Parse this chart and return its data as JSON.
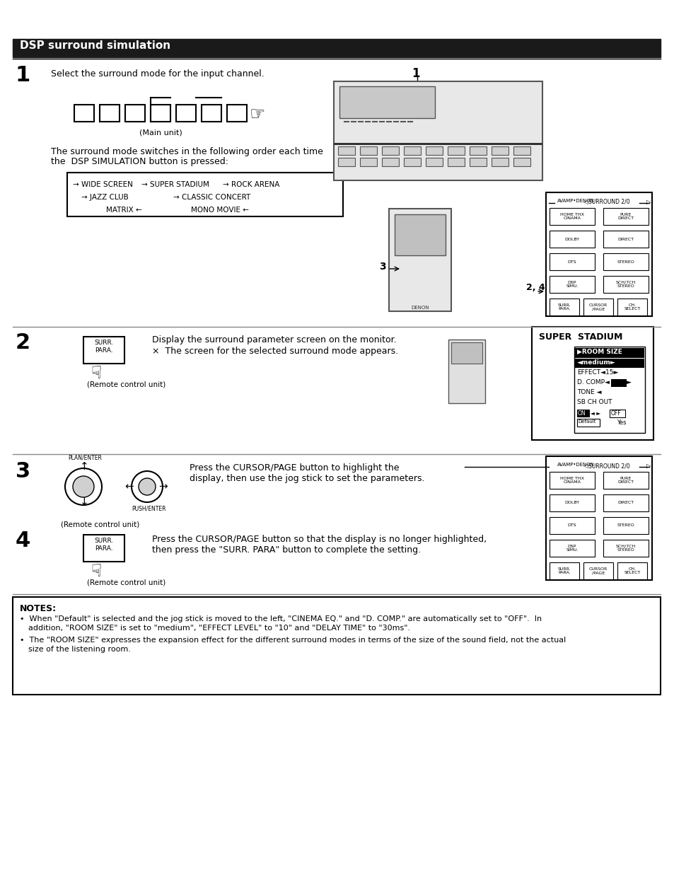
{
  "title": "DSP surround simulation",
  "title_bg": "#1a1a1a",
  "title_color": "#ffffff",
  "title_fontsize": 11,
  "bg_color": "#ffffff",
  "step1_number": "1",
  "step1_text1": "Select the surround mode for the input channel.",
  "step1_label": "(Main unit)",
  "step1_text2a": "The surround mode switches in the following order each time",
  "step1_text2b": "the  DSP SIMULATION button is pressed:",
  "step2_number": "2",
  "step2_text1": "Display the surround parameter screen on the monitor.",
  "step2_text2": "×  The screen for the selected surround mode appears.",
  "step2_remote_label": "(Remote control unit)",
  "step2_screen_title": "SUPER  STADIUM",
  "step3_number": "3",
  "step3_text1": "Press the CURSOR/PAGE button to highlight the",
  "step3_text2": "display, then use the jog stick to set the parameters.",
  "step3_remote_label": "(Remote control unit)",
  "step4_number": "4",
  "step4_text1": "Press the CURSOR/PAGE button so that the display is no longer highlighted,",
  "step4_text2": "then press the \"SURR. PARA\" button to complete the setting.",
  "step4_remote_label": "(Remote control unit)",
  "notes_title": "NOTES:",
  "note1_line1": "When \"Default\" is selected and the jog stick is moved to the left, \"CINEMA EQ.\" and \"D. COMP.\" are automatically set to \"OFF\".  In",
  "note1_line2": "addition, \"ROOM SIZE\" is set to \"medium\", \"EFFECT LEVEL\" to \"10\" and \"DELAY TIME\" to \"30ms\".",
  "note2_line1": "The \"ROOM SIZE\" expresses the expansion effect for the different surround modes in terms of the size of the sound field, not the actual",
  "note2_line2": "size of the listening room.",
  "label_1": "1",
  "label_24": "2, 4",
  "label_3": "3"
}
